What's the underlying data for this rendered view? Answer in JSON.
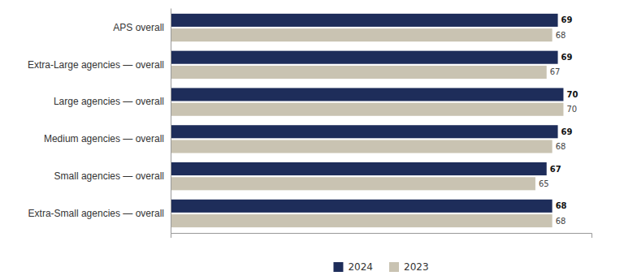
{
  "chart_data": {
    "type": "bar",
    "orientation": "horizontal",
    "categories": [
      "APS overall",
      "Extra-Large agencies — overall",
      "Large agencies — overall",
      "Medium agencies — overall",
      "Small agencies — overall",
      "Extra-Small agencies — overall"
    ],
    "series": [
      {
        "name": "2024",
        "color": "#1e2d5a",
        "values": [
          69,
          69,
          70,
          69,
          67,
          68
        ]
      },
      {
        "name": "2023",
        "color": "#c9c3b2",
        "values": [
          68,
          67,
          70,
          68,
          65,
          68
        ]
      }
    ],
    "xlim": [
      0,
      75
    ],
    "data_labels": true,
    "tick_labels": "y",
    "legend": "bottom",
    "grid": false
  }
}
